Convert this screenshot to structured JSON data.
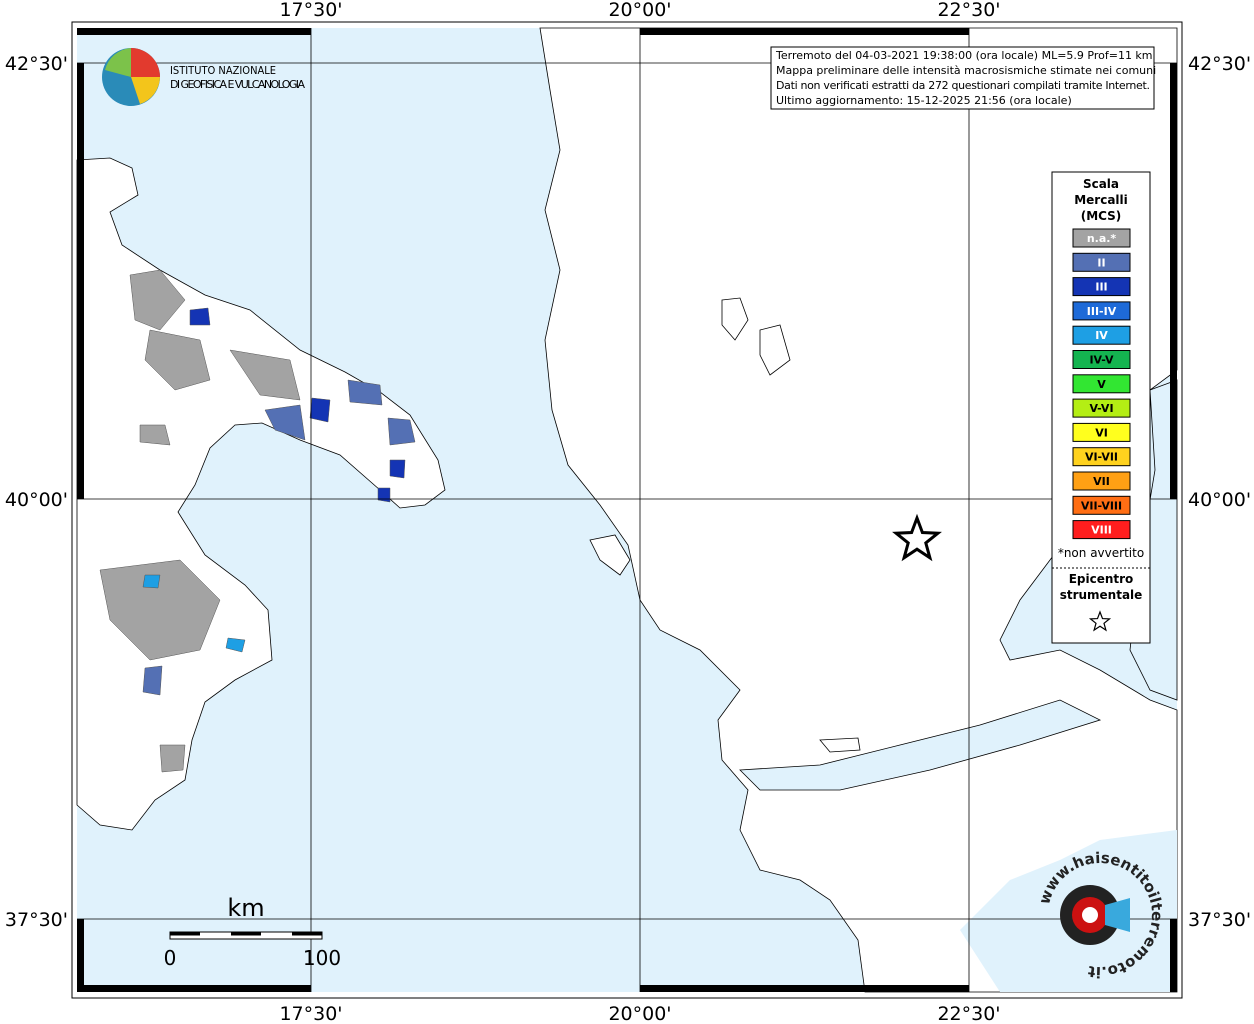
{
  "frame": {
    "top_labels": [
      "17°30'",
      "20°00'",
      "22°30'"
    ],
    "bottom_labels": [
      "17°30'",
      "20°00'",
      "22°30'"
    ],
    "left_labels": [
      "42°30'",
      "40°00'",
      "37°30'"
    ],
    "right_labels": [
      "42°30'",
      "40°00'",
      "37°30'"
    ]
  },
  "logo": {
    "line1": "ISTITUTO NAZIONALE",
    "line2": "DI GEOFISICA E VULCANOLOGIA"
  },
  "info": [
    "Terremoto del 04-03-2021 19:38:00 (ora locale) ML=5.9 Prof=11 km",
    "Mappa preliminare delle intensità macrosismiche stimate nei comuni",
    "Dati non verificati estratti da 272 questionari compilati tramite Internet.",
    "Ultimo aggiornamento: 15-12-2025 21:56 (ora locale)"
  ],
  "legend": {
    "title": [
      "Scala",
      "Mercalli",
      "(MCS)"
    ],
    "entries": [
      {
        "label": "n.a.*",
        "color": "#a3a3a3",
        "text_color": "#ffffff"
      },
      {
        "label": "II",
        "color": "#5470b4",
        "text_color": "#ffffff"
      },
      {
        "label": "III",
        "color": "#1434b4",
        "text_color": "#ffffff"
      },
      {
        "label": "III-IV",
        "color": "#1e6ad8",
        "text_color": "#ffffff"
      },
      {
        "label": "IV",
        "color": "#1e9fe4",
        "text_color": "#ffffff"
      },
      {
        "label": "IV-V",
        "color": "#14b450",
        "text_color": "#000000"
      },
      {
        "label": "V",
        "color": "#32e632",
        "text_color": "#000000"
      },
      {
        "label": "V-VI",
        "color": "#b4ee14",
        "text_color": "#000000"
      },
      {
        "label": "VI",
        "color": "#ffff1e",
        "text_color": "#000000"
      },
      {
        "label": "VI-VII",
        "color": "#ffd21e",
        "text_color": "#000000"
      },
      {
        "label": "VII",
        "color": "#ffa014",
        "text_color": "#000000"
      },
      {
        "label": "VII-VIII",
        "color": "#ff6e14",
        "text_color": "#000000"
      },
      {
        "label": "VIII",
        "color": "#ff1e1e",
        "text_color": "#ffffff"
      }
    ],
    "note": "*non avvertito",
    "epicenter": [
      "Epicentro",
      "strumentale"
    ]
  },
  "scale_bar": {
    "unit": "km",
    "start": "0",
    "end": "100"
  },
  "watermark": "www.haisentitoilterremoto.it"
}
